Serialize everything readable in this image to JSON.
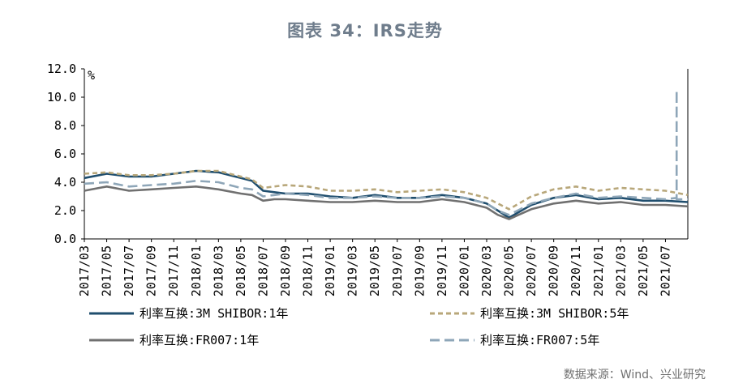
{
  "title": "图表 34：IRS走势",
  "source": "数据来源：Wind、兴业研究",
  "chart_data": {
    "type": "line",
    "yunit": "%",
    "ylim": [
      0,
      12
    ],
    "yticks": [
      "0.0",
      "2.0",
      "4.0",
      "6.0",
      "8.0",
      "10.0",
      "12.0"
    ],
    "xlim": [
      "2017-03",
      "2021-09"
    ],
    "xticks": [
      "2017/03",
      "2017/05",
      "2017/07",
      "2017/09",
      "2017/11",
      "2018/01",
      "2018/03",
      "2018/05",
      "2018/07",
      "2018/09",
      "2018/11",
      "2019/01",
      "2019/03",
      "2019/05",
      "2019/07",
      "2019/09",
      "2019/11",
      "2020/01",
      "2020/03",
      "2020/05",
      "2020/07",
      "2020/09",
      "2020/11",
      "2021/01",
      "2021/03",
      "2021/05",
      "2021/07"
    ],
    "legend": "bottom",
    "series": [
      {
        "name": "利率互换:3M SHIBOR:1年",
        "color": "#1f4e6e",
        "style": "solid",
        "x": [
          "2017-03",
          "2017-05",
          "2017-07",
          "2017-09",
          "2017-11",
          "2018-01",
          "2018-03",
          "2018-05",
          "2018-06",
          "2018-07",
          "2018-08",
          "2018-09",
          "2018-11",
          "2019-01",
          "2019-03",
          "2019-05",
          "2019-07",
          "2019-09",
          "2019-11",
          "2020-01",
          "2020-03",
          "2020-04",
          "2020-05",
          "2020-07",
          "2020-09",
          "2020-11",
          "2021-01",
          "2021-03",
          "2021-05",
          "2021-07",
          "2021-09"
        ],
        "values": [
          4.3,
          4.6,
          4.4,
          4.4,
          4.6,
          4.8,
          4.7,
          4.3,
          4.1,
          3.4,
          3.3,
          3.2,
          3.2,
          3.0,
          2.9,
          3.1,
          2.9,
          2.9,
          3.1,
          2.9,
          2.5,
          2.0,
          1.5,
          2.4,
          2.9,
          3.1,
          2.8,
          2.9,
          2.7,
          2.7,
          2.6
        ]
      },
      {
        "name": "利率互换:3M SHIBOR:5年",
        "color": "#b8a77a",
        "style": "dashed",
        "x": [
          "2017-03",
          "2017-05",
          "2017-07",
          "2017-09",
          "2017-11",
          "2018-01",
          "2018-03",
          "2018-05",
          "2018-06",
          "2018-07",
          "2018-08",
          "2018-09",
          "2018-11",
          "2019-01",
          "2019-03",
          "2019-05",
          "2019-07",
          "2019-09",
          "2019-11",
          "2020-01",
          "2020-03",
          "2020-04",
          "2020-05",
          "2020-07",
          "2020-09",
          "2020-11",
          "2021-01",
          "2021-03",
          "2021-05",
          "2021-07",
          "2021-09"
        ],
        "values": [
          4.6,
          4.7,
          4.5,
          4.5,
          4.6,
          4.8,
          4.8,
          4.4,
          4.2,
          3.6,
          3.7,
          3.8,
          3.7,
          3.4,
          3.4,
          3.5,
          3.3,
          3.4,
          3.5,
          3.3,
          2.9,
          2.5,
          2.1,
          3.0,
          3.5,
          3.7,
          3.4,
          3.6,
          3.5,
          3.4,
          3.1
        ]
      },
      {
        "name": "利率互换:FR007:1年",
        "color": "#707070",
        "style": "solid",
        "x": [
          "2017-03",
          "2017-05",
          "2017-07",
          "2017-09",
          "2017-11",
          "2018-01",
          "2018-03",
          "2018-05",
          "2018-06",
          "2018-07",
          "2018-08",
          "2018-09",
          "2018-11",
          "2019-01",
          "2019-03",
          "2019-05",
          "2019-07",
          "2019-09",
          "2019-11",
          "2020-01",
          "2020-03",
          "2020-04",
          "2020-05",
          "2020-07",
          "2020-09",
          "2020-11",
          "2021-01",
          "2021-03",
          "2021-05",
          "2021-07",
          "2021-09"
        ],
        "values": [
          3.4,
          3.7,
          3.4,
          3.5,
          3.6,
          3.7,
          3.5,
          3.2,
          3.1,
          2.7,
          2.8,
          2.8,
          2.7,
          2.6,
          2.6,
          2.7,
          2.6,
          2.6,
          2.8,
          2.6,
          2.2,
          1.7,
          1.4,
          2.1,
          2.5,
          2.7,
          2.5,
          2.6,
          2.4,
          2.4,
          2.3
        ]
      },
      {
        "name": "利率互换:FR007:5年",
        "color": "#8ea6b8",
        "style": "dashed-wide",
        "x": [
          "2017-03",
          "2017-05",
          "2017-07",
          "2017-09",
          "2017-11",
          "2018-01",
          "2018-03",
          "2018-05",
          "2018-06",
          "2018-07",
          "2018-08",
          "2018-09",
          "2018-11",
          "2019-01",
          "2019-03",
          "2019-05",
          "2019-07",
          "2019-09",
          "2019-11",
          "2020-01",
          "2020-03",
          "2020-04",
          "2020-05",
          "2020-07",
          "2020-09",
          "2020-11",
          "2021-01",
          "2021-03",
          "2021-05",
          "2021-07",
          "2021-08",
          "2021-08",
          "2021-08",
          "2021-09"
        ],
        "values": [
          3.9,
          4.0,
          3.7,
          3.8,
          3.9,
          4.1,
          4.0,
          3.6,
          3.5,
          3.0,
          3.1,
          3.2,
          3.1,
          2.9,
          2.9,
          3.0,
          2.9,
          2.9,
          3.0,
          2.9,
          2.5,
          2.0,
          1.7,
          2.5,
          2.9,
          3.2,
          2.9,
          3.0,
          2.9,
          2.8,
          2.9,
          10.5,
          2.8,
          2.8
        ]
      }
    ]
  }
}
